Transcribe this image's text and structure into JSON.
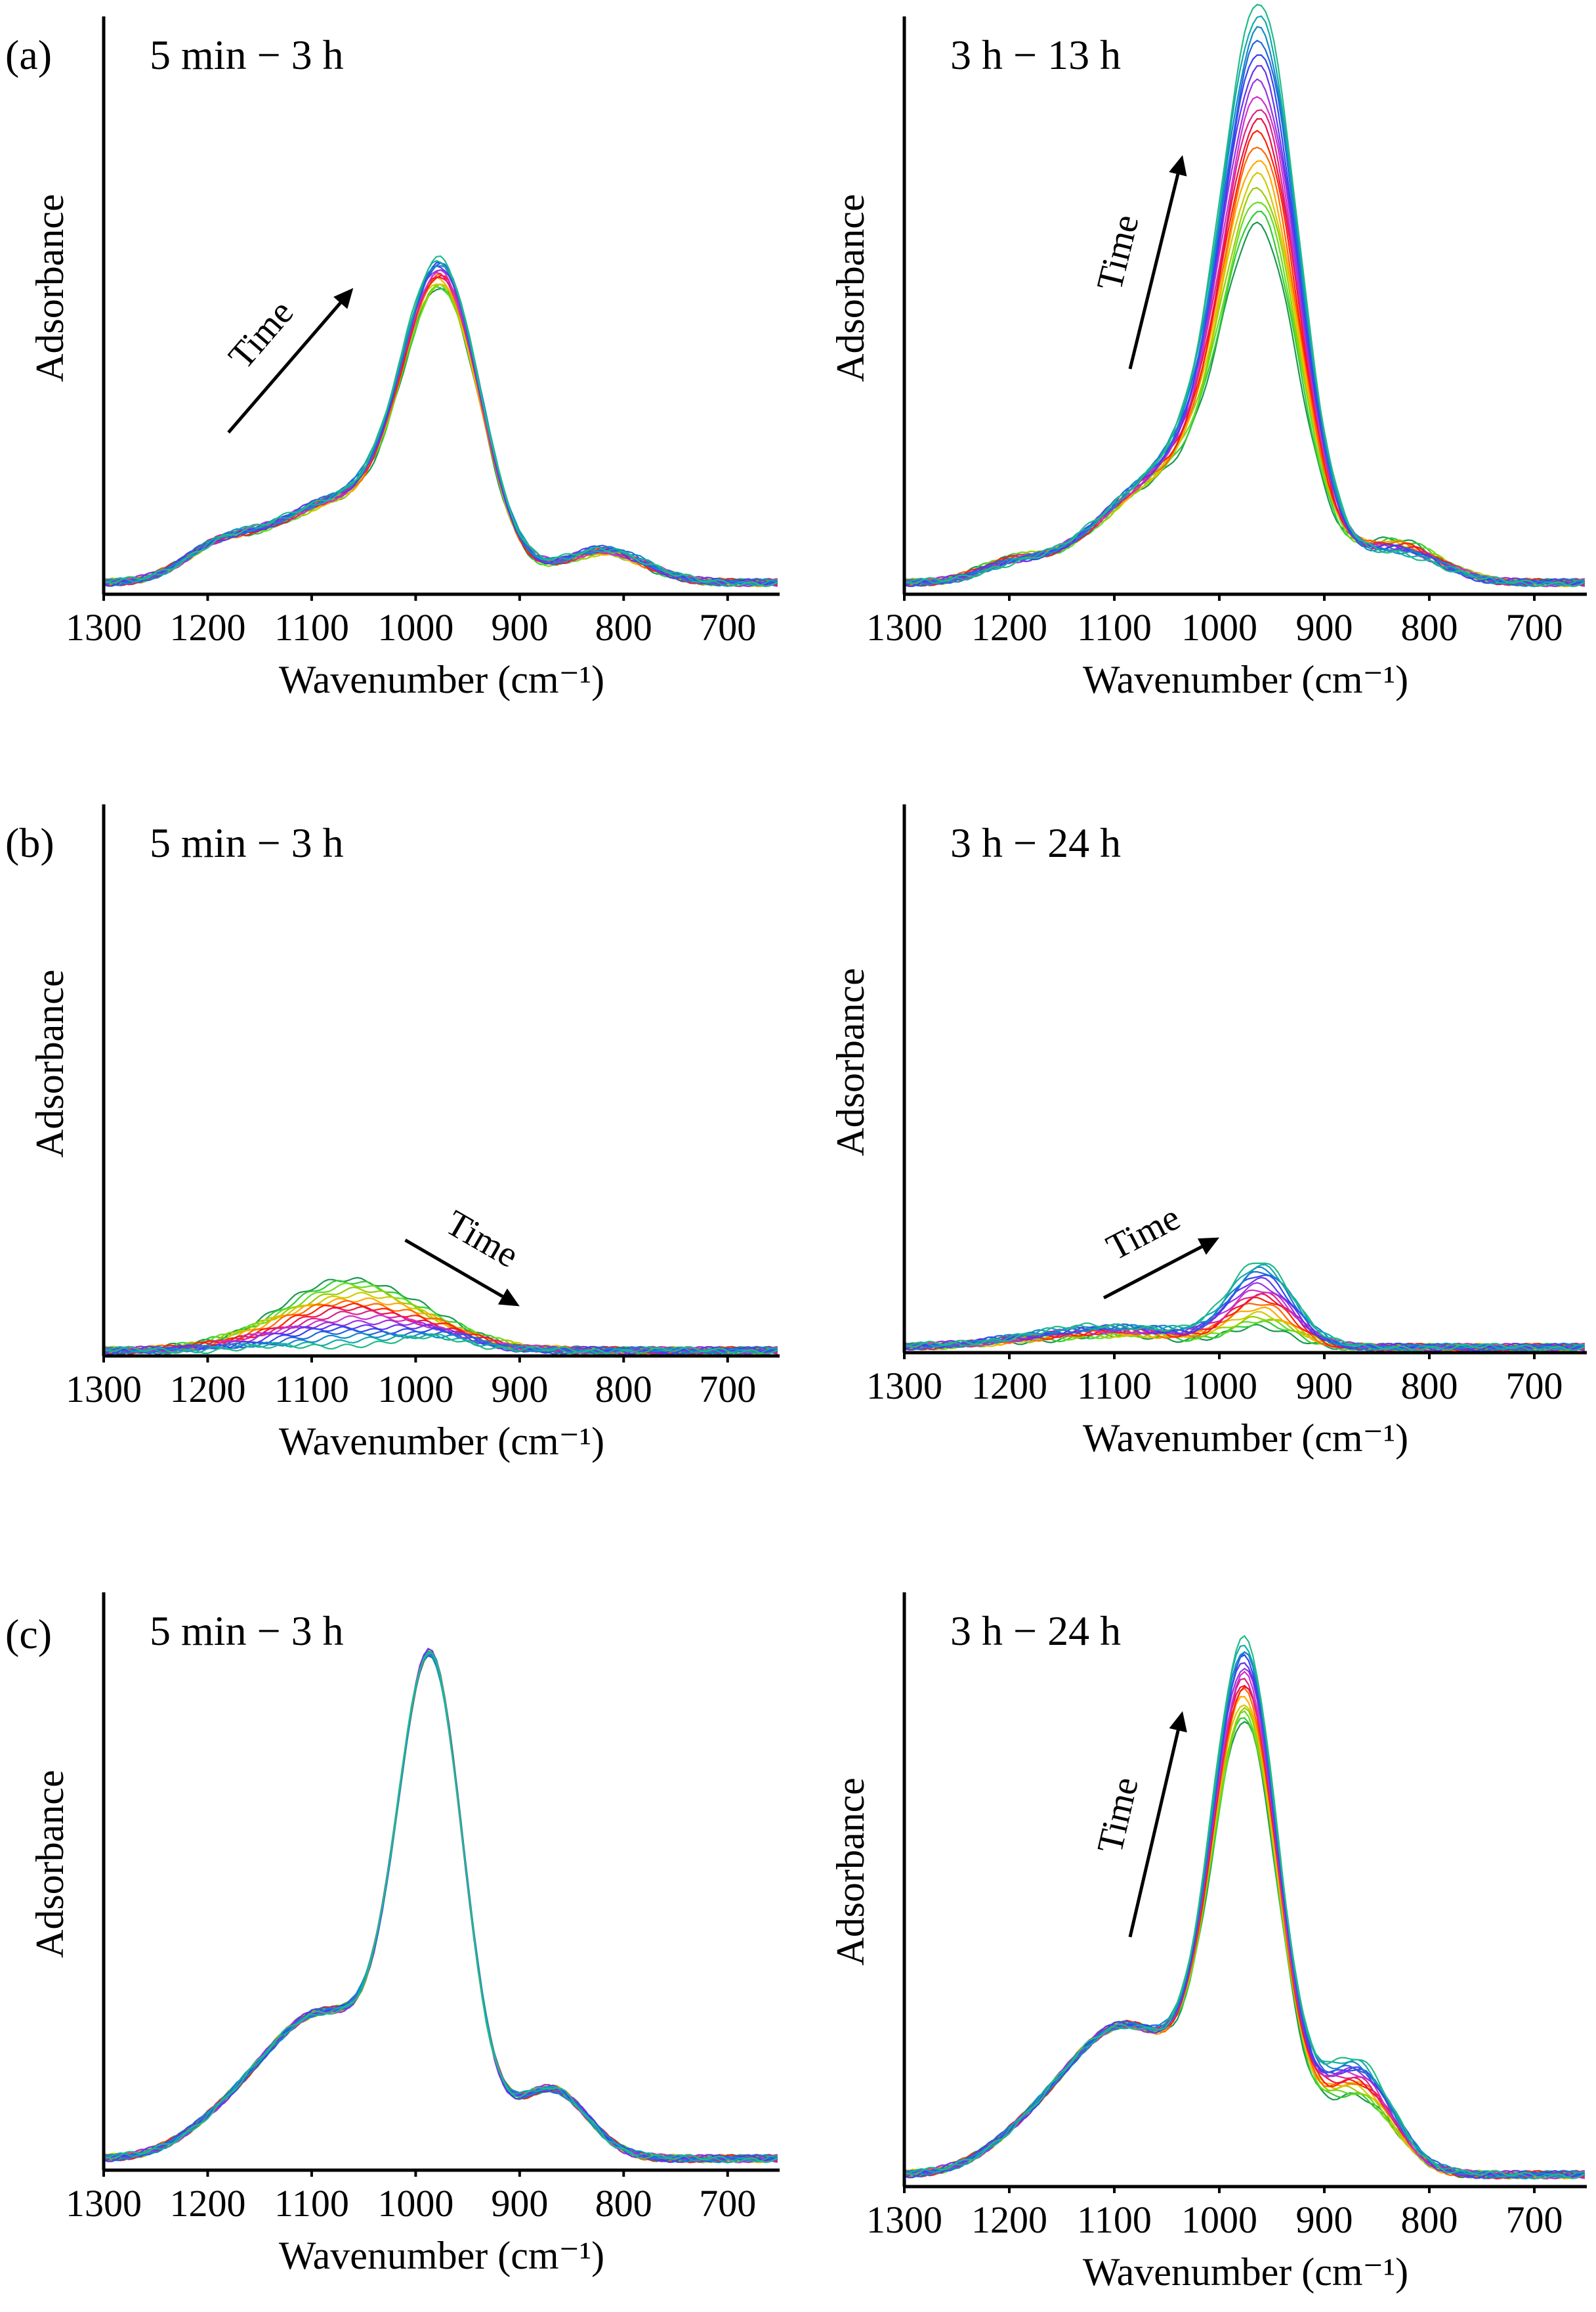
{
  "figure": {
    "row_labels": [
      "(a)",
      "(b)",
      "(c)"
    ]
  },
  "palette": [
    "#1a9850",
    "#33cc33",
    "#66dd22",
    "#99cc00",
    "#cccc00",
    "#ffaa00",
    "#ff6600",
    "#ff2200",
    "#ee1144",
    "#dd2288",
    "#cc33cc",
    "#9933dd",
    "#6633ee",
    "#3344ee",
    "#2266dd",
    "#1188cc",
    "#11aaaa",
    "#22bb88"
  ],
  "chart_data": [
    {
      "id": "a-left",
      "type": "line",
      "row": "(a)",
      "range_label": "5 min − 3 h",
      "xlabel": "Wavenumber (cm⁻¹)",
      "ylabel": "Adsorbance",
      "xlim": [
        1300,
        650
      ],
      "ylim": [
        0,
        1.0
      ],
      "xticks": [
        1300,
        1200,
        1100,
        1000,
        900,
        800,
        700
      ],
      "arrow": {
        "label": "Time",
        "from": [
          1180,
          0.28
        ],
        "to": [
          1060,
          0.53
        ]
      },
      "series_count": 18,
      "peaks": [
        {
          "center": 975,
          "width": 38,
          "height_start": 0.48,
          "height_end": 0.53
        },
        {
          "center": 1080,
          "width": 60,
          "height_start": 0.13,
          "height_end": 0.14
        },
        {
          "center": 1190,
          "width": 35,
          "height_start": 0.05,
          "height_end": 0.05
        },
        {
          "center": 820,
          "width": 40,
          "height_start": 0.05,
          "height_end": 0.06
        }
      ],
      "baseline": 0.02
    },
    {
      "id": "a-right",
      "type": "line",
      "row": "(a)",
      "range_label": "3 h − 13 h",
      "xlabel": "Wavenumber (cm⁻¹)",
      "ylabel": "Adsorbance",
      "xlim": [
        1300,
        650
      ],
      "ylim": [
        0,
        1.0
      ],
      "xticks": [
        1300,
        1200,
        1100,
        1000,
        900,
        800,
        700
      ],
      "arrow": {
        "label": "Time",
        "from": [
          1085,
          0.39
        ],
        "to": [
          1035,
          0.76
        ]
      },
      "series_count": 18,
      "peaks": [
        {
          "center": 960,
          "width": 36,
          "height_start": 0.52,
          "height_end": 0.9
        },
        {
          "center": 1040,
          "width": 70,
          "height_start": 0.18,
          "height_end": 0.2
        },
        {
          "center": 1200,
          "width": 30,
          "height_start": 0.03,
          "height_end": 0.02
        },
        {
          "center": 830,
          "width": 40,
          "height_start": 0.07,
          "height_end": 0.05
        }
      ],
      "baseline": 0.02
    },
    {
      "id": "b-left",
      "type": "line",
      "row": "(b)",
      "range_label": "5 min − 3 h",
      "xlabel": "Wavenumber (cm⁻¹)",
      "ylabel": "Adsorbance",
      "xlim": [
        1300,
        650
      ],
      "ylim": [
        0,
        1.0
      ],
      "xticks": [
        1300,
        1200,
        1100,
        1000,
        900,
        800,
        700
      ],
      "arrow": {
        "label": "Time",
        "from": [
          1010,
          0.21
        ],
        "to": [
          900,
          0.09
        ]
      },
      "series_count": 18,
      "peaks": [
        {
          "center": 1060,
          "width": 70,
          "height_start": 0.13,
          "height_end": 0.01
        },
        {
          "center": 975,
          "width": 30,
          "height_start": 0.0,
          "height_end": 0.02
        }
      ],
      "baseline": 0.01
    },
    {
      "id": "b-right",
      "type": "line",
      "row": "(b)",
      "range_label": "3 h − 24 h",
      "xlabel": "Wavenumber (cm⁻¹)",
      "ylabel": "Adsorbance",
      "xlim": [
        1300,
        650
      ],
      "ylim": [
        0,
        1.0
      ],
      "xticks": [
        1300,
        1200,
        1100,
        1000,
        900,
        800,
        700
      ],
      "arrow": {
        "label": "Time",
        "from": [
          1110,
          0.1
        ],
        "to": [
          1000,
          0.21
        ]
      },
      "series_count": 18,
      "peaks": [
        {
          "center": 960,
          "width": 30,
          "height_start": 0.03,
          "height_end": 0.15
        },
        {
          "center": 1100,
          "width": 80,
          "height_start": 0.02,
          "height_end": 0.04
        }
      ],
      "baseline": 0.01
    },
    {
      "id": "c-left",
      "type": "line",
      "row": "(c)",
      "range_label": "5 min − 3 h",
      "xlabel": "Wavenumber (cm⁻¹)",
      "ylabel": "Adsorbance",
      "xlim": [
        1300,
        650
      ],
      "ylim": [
        0,
        1.0
      ],
      "xticks": [
        1300,
        1200,
        1100,
        1000,
        900,
        800,
        700
      ],
      "arrow": null,
      "series_count": 18,
      "peaks": [
        {
          "center": 985,
          "width": 32,
          "height_start": 0.82,
          "height_end": 0.82
        },
        {
          "center": 1090,
          "width": 60,
          "height_start": 0.25,
          "height_end": 0.25
        },
        {
          "center": 870,
          "width": 35,
          "height_start": 0.12,
          "height_end": 0.12
        },
        {
          "center": 1190,
          "width": 40,
          "height_start": 0.03,
          "height_end": 0.03
        }
      ],
      "baseline": 0.02
    },
    {
      "id": "c-right",
      "type": "line",
      "row": "(c)",
      "range_label": "3 h − 24 h",
      "xlabel": "Wavenumber (cm⁻¹)",
      "ylabel": "Adsorbance",
      "xlim": [
        1300,
        650
      ],
      "ylim": [
        0,
        1.0
      ],
      "xticks": [
        1300,
        1200,
        1100,
        1000,
        900,
        800,
        700
      ],
      "arrow": {
        "label": "Time",
        "from": [
          1085,
          0.42
        ],
        "to": [
          1035,
          0.8
        ]
      },
      "series_count": 18,
      "peaks": [
        {
          "center": 975,
          "width": 32,
          "height_start": 0.72,
          "height_end": 0.86
        },
        {
          "center": 1090,
          "width": 60,
          "height_start": 0.25,
          "height_end": 0.25
        },
        {
          "center": 870,
          "width": 35,
          "height_start": 0.13,
          "height_end": 0.19
        },
        {
          "center": 1190,
          "width": 40,
          "height_start": 0.03,
          "height_end": 0.03
        }
      ],
      "baseline": 0.02
    }
  ]
}
